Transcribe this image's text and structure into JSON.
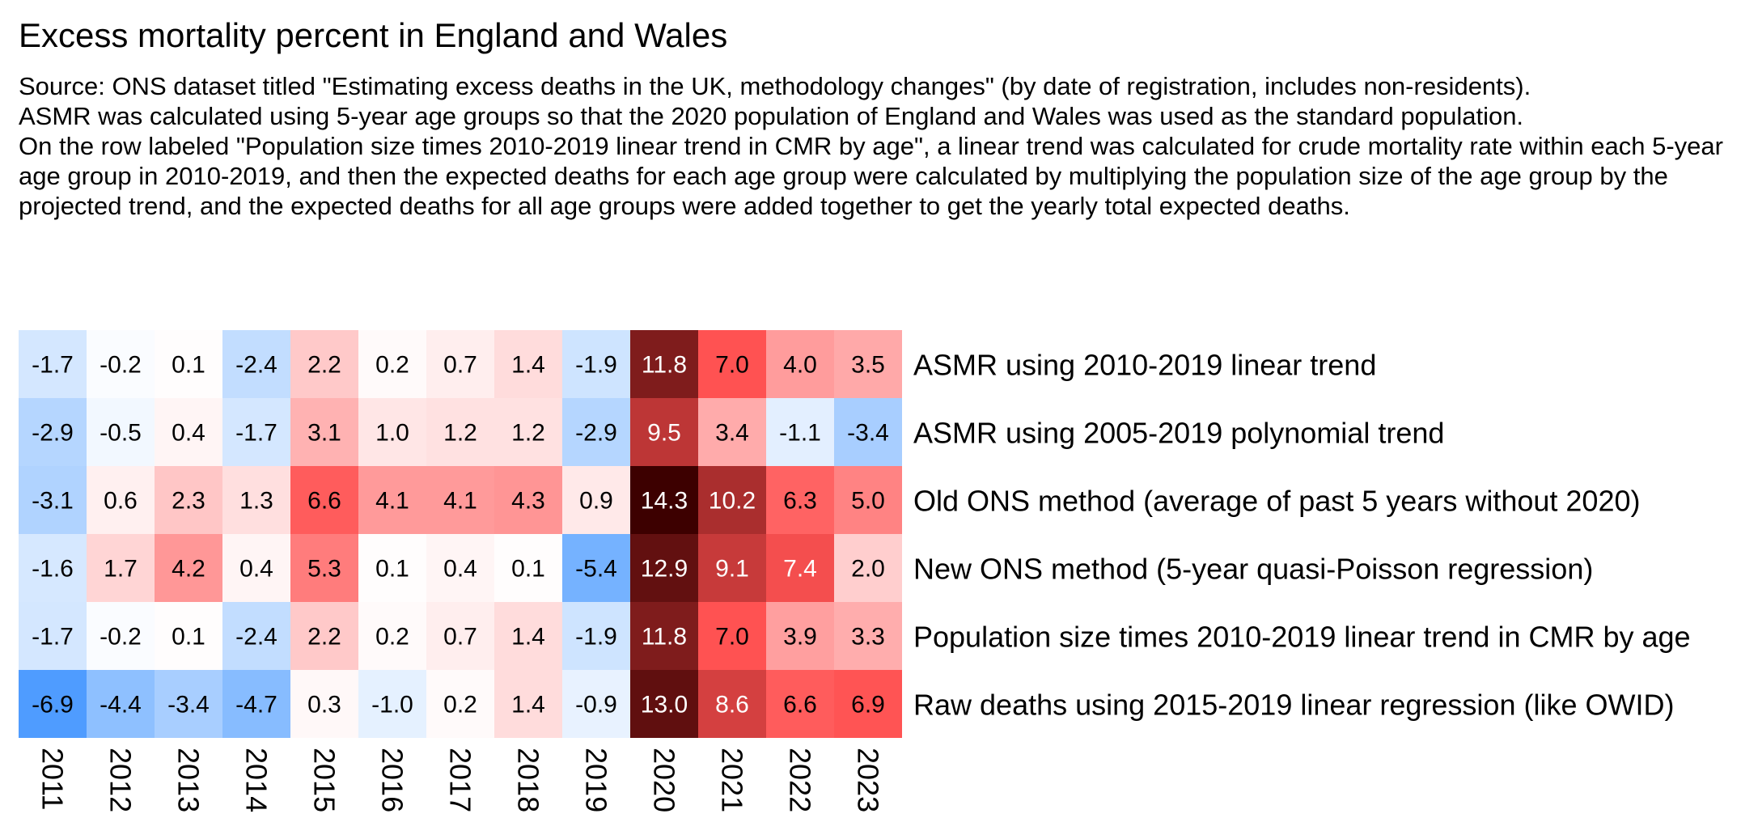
{
  "title": "Excess mortality percent in England and Wales",
  "subtitle": [
    "Source: ONS dataset titled \"Estimating excess deaths in the UK, methodology changes\" (by date of registration, includes non-residents).",
    "ASMR was calculated using 5-year age groups so that the 2020 population of England and Wales was used as the standard population.",
    "On the row labeled \"Population size times 2010-2019 linear trend in CMR by age\", a linear trend was calculated for crude mortality rate within each 5-year age group in 2010-2019, and then the expected deaths for each age group were calculated by multiplying the population size of the age group by the projected trend, and the expected deaths for all age groups were added together to get the yearly total expected deaths."
  ],
  "chart_data": {
    "type": "heatmap",
    "columns": [
      "2011",
      "2012",
      "2013",
      "2014",
      "2015",
      "2016",
      "2017",
      "2018",
      "2019",
      "2020",
      "2021",
      "2022",
      "2023"
    ],
    "rows": [
      "ASMR using 2010-2019 linear trend",
      "ASMR using 2005-2019 polynomial trend",
      "Old ONS method (average of past 5 years without 2020)",
      "New ONS method (5-year quasi-Poisson regression)",
      "Population size times 2010-2019 linear trend in CMR by age",
      "Raw deaths using 2015-2019 linear regression (like OWID)"
    ],
    "values": [
      [
        -1.7,
        -0.2,
        0.1,
        -2.4,
        2.2,
        0.2,
        0.7,
        1.4,
        -1.9,
        11.8,
        7.0,
        4.0,
        3.5
      ],
      [
        -2.9,
        -0.5,
        0.4,
        -1.7,
        3.1,
        1.0,
        1.2,
        1.2,
        -2.9,
        9.5,
        3.4,
        -1.1,
        -3.4
      ],
      [
        -3.1,
        0.6,
        2.3,
        1.3,
        6.6,
        4.1,
        4.1,
        4.3,
        0.9,
        14.3,
        10.2,
        6.3,
        5.0
      ],
      [
        -1.6,
        1.7,
        4.2,
        0.4,
        5.3,
        0.1,
        0.4,
        0.1,
        -5.4,
        12.9,
        9.1,
        7.4,
        2.0
      ],
      [
        -1.7,
        -0.2,
        0.1,
        -2.4,
        2.2,
        0.2,
        0.7,
        1.4,
        -1.9,
        11.8,
        7.0,
        3.9,
        3.3
      ],
      [
        -6.9,
        -4.4,
        -3.4,
        -4.7,
        0.3,
        -1.0,
        0.2,
        1.4,
        -0.9,
        13.0,
        8.6,
        6.6,
        6.9
      ]
    ],
    "value_format": "one decimal",
    "color_scale": {
      "negative_max": "#4c9bff",
      "zero": "#ffffff",
      "positive_mid": "#ff5252",
      "positive_max": "#3d0000"
    },
    "grid": false,
    "legend": "none"
  }
}
